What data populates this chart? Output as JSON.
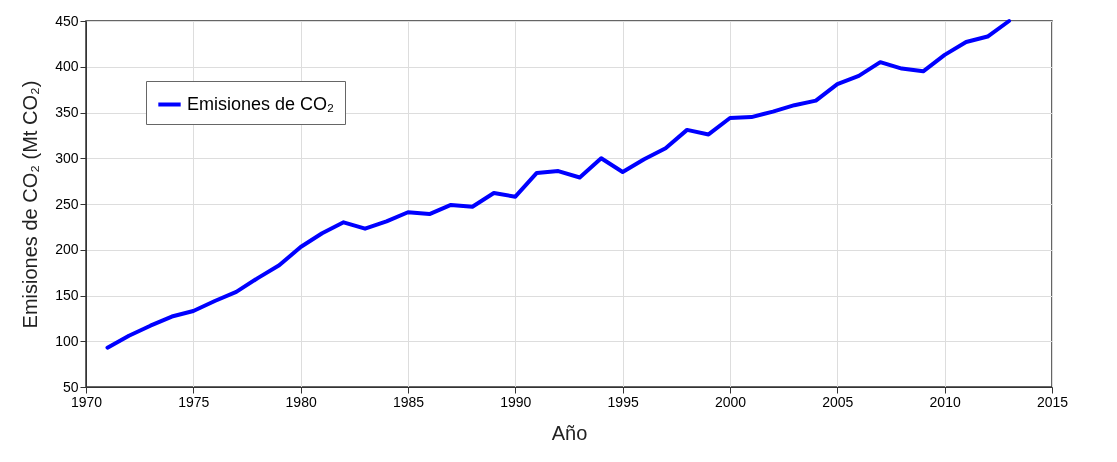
{
  "chart_data": {
    "type": "line",
    "xlabel": "Año",
    "ylabel": "Emisiones de CO₂ (Mt CO₂)",
    "x": [
      1971,
      1972,
      1973,
      1974,
      1975,
      1976,
      1977,
      1978,
      1979,
      1980,
      1981,
      1982,
      1983,
      1984,
      1985,
      1986,
      1987,
      1988,
      1989,
      1990,
      1991,
      1992,
      1993,
      1994,
      1995,
      1996,
      1997,
      1998,
      1999,
      2000,
      2001,
      2002,
      2003,
      2004,
      2005,
      2006,
      2007,
      2008,
      2009,
      2010,
      2011,
      2012,
      2013
    ],
    "series": [
      {
        "name": "Emisiones de CO₂",
        "color": "#0000ff",
        "values": [
          93,
          106,
          117,
          127,
          133,
          144,
          154,
          169,
          183,
          203,
          218,
          230,
          223,
          231,
          241,
          239,
          249,
          247,
          262,
          258,
          284,
          286,
          279,
          300,
          285,
          299,
          311,
          331,
          326,
          344,
          345,
          351,
          358,
          363,
          381,
          390,
          405,
          398,
          395,
          413,
          427,
          433,
          450
        ]
      }
    ],
    "xlim": [
      1970,
      2015
    ],
    "xticks": [
      1970,
      1975,
      1980,
      1985,
      1990,
      1995,
      2000,
      2005,
      2010,
      2015
    ],
    "ylim": [
      50,
      450
    ],
    "yticks": [
      50,
      100,
      150,
      200,
      250,
      300,
      350,
      400,
      450
    ],
    "grid": true,
    "legend": "top left",
    "marker": "none",
    "line_style": "solid"
  }
}
